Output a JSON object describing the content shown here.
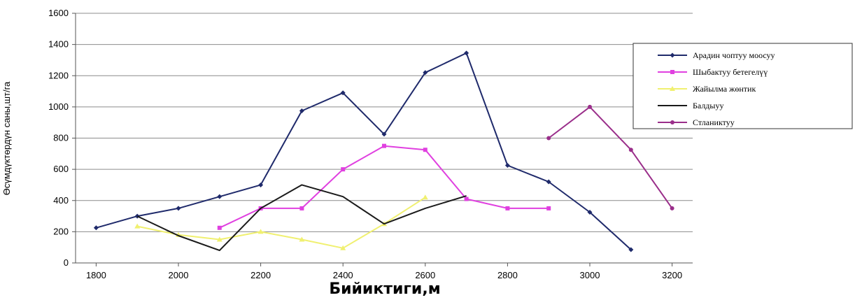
{
  "chart_data": {
    "type": "line",
    "title": "",
    "xlabel": "Бийиктиги,м",
    "ylabel": "Өсүмдүктөрдүн саны,шт/га",
    "xlim": [
      1750,
      3250
    ],
    "ylim": [
      0,
      1600
    ],
    "x_ticks": [
      "1800",
      "2000",
      "2200",
      "2400",
      "2600",
      "2800",
      "3000",
      "3200"
    ],
    "y_ticks": [
      "0",
      "200",
      "400",
      "600",
      "800",
      "1000",
      "1200",
      "1400",
      "1600"
    ],
    "grid": "horizontal",
    "legend_position": "right",
    "series": [
      {
        "name": "Арадин чоптуу моосуу",
        "color": "#1f2a6b",
        "marker": "diamond",
        "points": [
          [
            1800,
            225
          ],
          [
            1900,
            300
          ],
          [
            2000,
            350
          ],
          [
            2100,
            425
          ],
          [
            2200,
            500
          ],
          [
            2300,
            975
          ],
          [
            2400,
            1090
          ],
          [
            2500,
            825
          ],
          [
            2600,
            1220
          ],
          [
            2700,
            1345
          ],
          [
            2800,
            625
          ],
          [
            2900,
            520
          ],
          [
            3000,
            325
          ],
          [
            3100,
            85
          ]
        ]
      },
      {
        "name": "Шыбактуу бетегелүү",
        "color": "#e040e0",
        "marker": "square",
        "points": [
          [
            2100,
            225
          ],
          [
            2200,
            350
          ],
          [
            2300,
            350
          ],
          [
            2400,
            600
          ],
          [
            2500,
            750
          ],
          [
            2600,
            725
          ],
          [
            2700,
            410
          ],
          [
            2800,
            350
          ],
          [
            2900,
            350
          ]
        ]
      },
      {
        "name": "Жайылма жөнтик",
        "color": "#f0f070",
        "marker": "triangle",
        "points": [
          [
            1900,
            235
          ],
          [
            2000,
            180
          ],
          [
            2100,
            150
          ],
          [
            2200,
            200
          ],
          [
            2300,
            150
          ],
          [
            2400,
            95
          ],
          [
            2500,
            250
          ],
          [
            2600,
            420
          ]
        ]
      },
      {
        "name": "Балдыуу",
        "color": "#1a1a1a",
        "marker": "none",
        "points": [
          [
            1900,
            300
          ],
          [
            2000,
            175
          ],
          [
            2100,
            80
          ],
          [
            2200,
            350
          ],
          [
            2300,
            500
          ],
          [
            2400,
            425
          ],
          [
            2500,
            250
          ],
          [
            2600,
            350
          ],
          [
            2700,
            430
          ]
        ]
      },
      {
        "name": "Стланиктуу",
        "color": "#9a2e8a",
        "marker": "circle",
        "points": [
          [
            2900,
            800
          ],
          [
            3000,
            1000
          ],
          [
            3100,
            725
          ],
          [
            3200,
            350
          ]
        ]
      }
    ]
  }
}
